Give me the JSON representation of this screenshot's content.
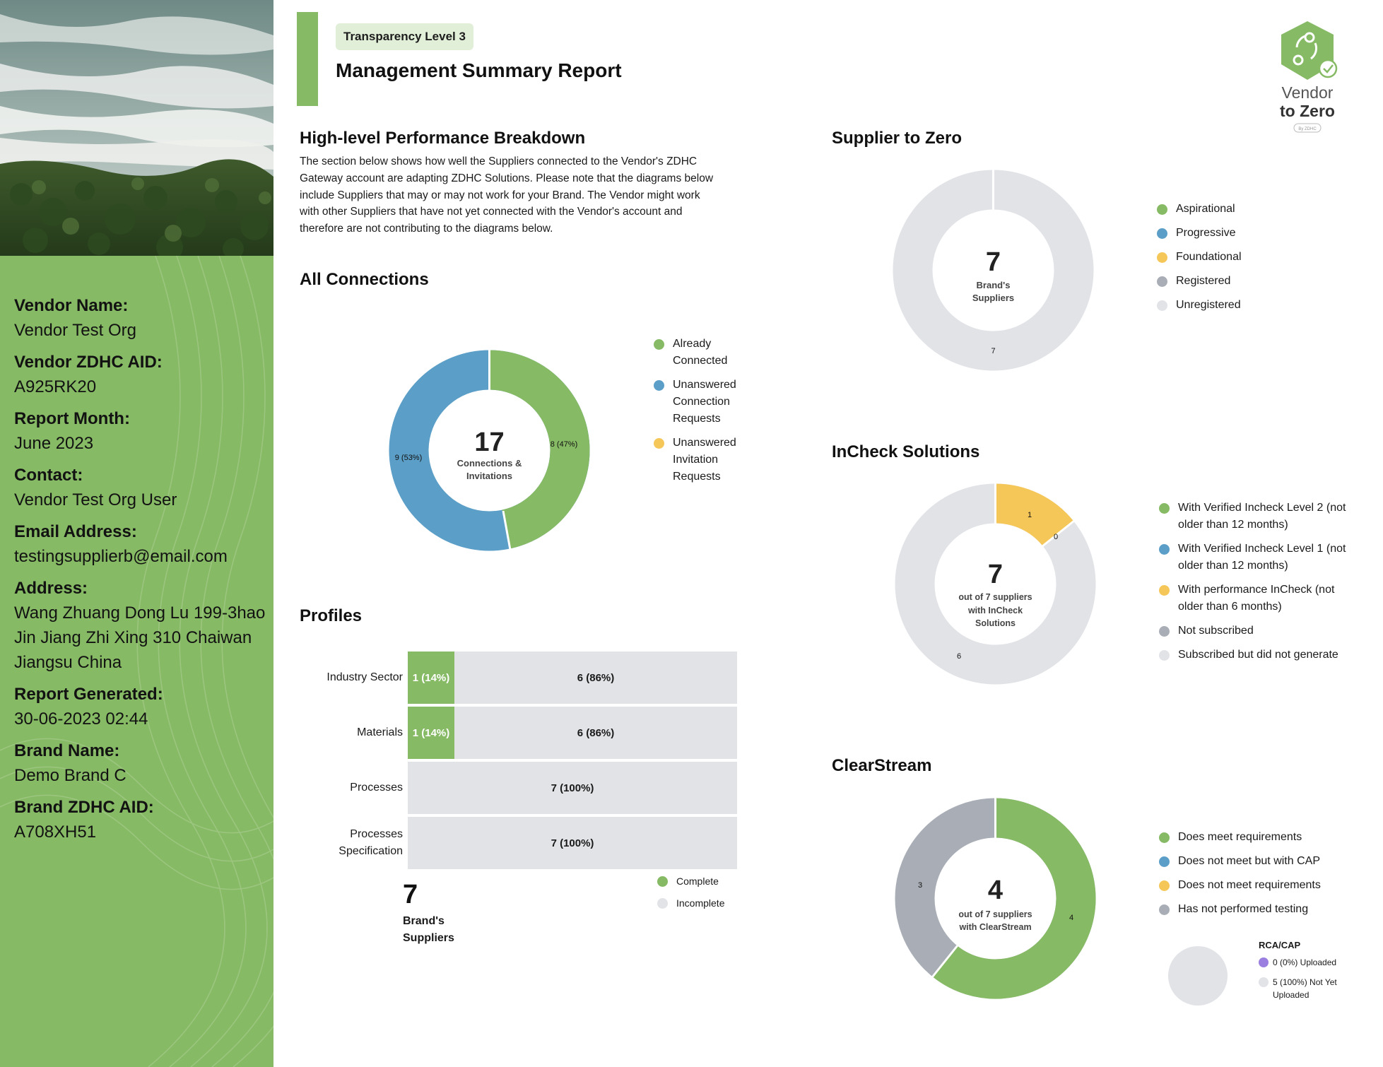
{
  "header": {
    "badge": "Transparency Level 3",
    "title": "Management Summary Report"
  },
  "logo": {
    "line1": "Vendor",
    "line2": "to Zero",
    "tag": "By ZDHC"
  },
  "vendor": {
    "fields": [
      {
        "label": "Vendor Name:",
        "value": "Vendor Test Org"
      },
      {
        "label": "Vendor ZDHC AID:",
        "value": "A925RK20"
      },
      {
        "label": "Report Month:",
        "value": "June 2023"
      },
      {
        "label": "Contact:",
        "value": "Vendor Test Org User"
      },
      {
        "label": "Email Address:",
        "value": "testingsupplierb@email.com"
      },
      {
        "label": "Address:",
        "value": "Wang Zhuang Dong Lu 199-3hao Jin Jiang Zhi Xing 310 Chaiwan Jiangsu China"
      },
      {
        "label": "Report Generated:",
        "value": "30-06-2023 02:44"
      },
      {
        "label": "Brand Name:",
        "value": "Demo Brand C"
      },
      {
        "label": "Brand ZDHC AID:",
        "value": "A708XH51"
      }
    ]
  },
  "performance": {
    "title": "High-level Performance Breakdown",
    "intro": "The section below shows how well the Suppliers connected to the Vendor's ZDHC Gateway account are adapting ZDHC Solutions. Please note that the diagrams below include Suppliers that may or may not work for your Brand. The Vendor might work with other Suppliers that have not yet connected with the Vendor's account and therefore are not contributing to the diagrams below."
  },
  "colors": {
    "green": "#86ba64",
    "blue": "#5b9ec7",
    "yellow": "#f5c758",
    "gray": "#a9aeb6",
    "lightgray": "#e1e3e7",
    "purple": "#9b7fe0"
  },
  "all_connections": {
    "title": "All Connections",
    "total": "17",
    "center_line1": "Connections &",
    "center_line2": "Invitations",
    "label_green": "8 (47%)",
    "label_blue": "9 (53%)",
    "legend": [
      "Already Connected",
      "Unanswered Connection Requests",
      "Unanswered Invitation Requests"
    ]
  },
  "supplier_to_zero": {
    "title": "Supplier to Zero",
    "total": "7",
    "center_line1": "Brand's",
    "center_line2": "Suppliers",
    "label_unregistered": "7",
    "legend": [
      "Aspirational",
      "Progressive",
      "Foundational",
      "Registered",
      "Unregistered"
    ]
  },
  "incheck": {
    "title": "InCheck Solutions",
    "total": "7",
    "center_line1": "out of 7 suppliers",
    "center_line2": "with InCheck",
    "center_line3": "Solutions",
    "label_yellow": "1",
    "label_zero": "0",
    "label_light": "6",
    "legend": [
      "With Verified Incheck Level 2 (not older than 12 months)",
      "With Verified Incheck Level 1 (not older than 12 months)",
      "With performance InCheck (not older than 6 months)",
      "Not subscribed",
      "Subscribed but did not generate"
    ]
  },
  "clearstream": {
    "title": "ClearStream",
    "total": "4",
    "center_line1": "out of 7 suppliers",
    "center_line2": "with ClearStream",
    "label_green": "4",
    "label_gray": "3",
    "legend": [
      "Does meet requirements",
      "Does not meet but with CAP",
      "Does not meet requirements",
      "Has not performed testing"
    ],
    "rca_title": "RCA/CAP",
    "rca_uploaded": "0 (0%) Uploaded",
    "rca_not_uploaded_1": "5 (100%) Not Yet",
    "rca_not_uploaded_2": "Uploaded"
  },
  "profiles": {
    "title": "Profiles",
    "rows": [
      {
        "label": "Industry Sector",
        "complete": "1 (14%)",
        "incomplete": "6 (86%)",
        "complete_pct": 14
      },
      {
        "label": "Materials",
        "complete": "1 (14%)",
        "incomplete": "6 (86%)",
        "complete_pct": 14
      },
      {
        "label": "Processes",
        "complete": "",
        "incomplete": "7 (100%)",
        "complete_pct": 0
      },
      {
        "label": "Processes Specification",
        "complete": "",
        "incomplete": "7 (100%)",
        "complete_pct": 0
      }
    ],
    "legend": [
      "Complete",
      "Incomplete"
    ],
    "total": "7",
    "total_label_1": "Brand's",
    "total_label_2": "Suppliers"
  }
}
